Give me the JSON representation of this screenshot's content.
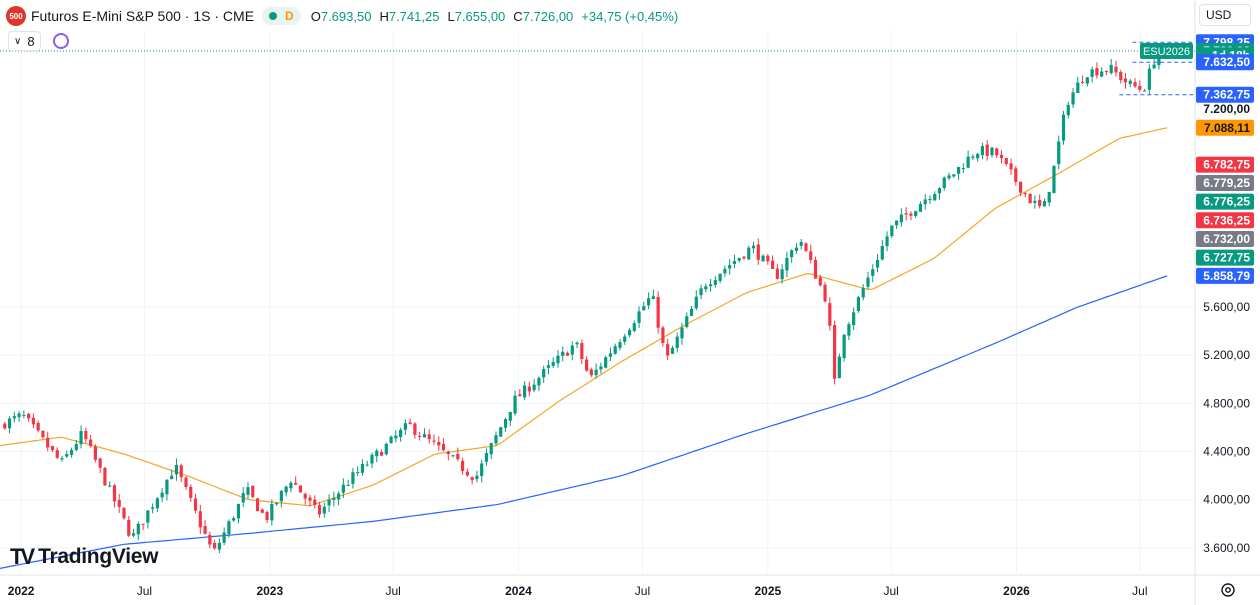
{
  "header": {
    "logo_text": "500",
    "title": "Futuros E-Mini S&P 500 · 1S · CME",
    "d_flag": "D",
    "ohlc": [
      {
        "k": "O",
        "v": "7.693,50"
      },
      {
        "k": "H",
        "v": "7.741,25"
      },
      {
        "k": "L",
        "v": "7.655,00"
      },
      {
        "k": "C",
        "v": "7.726,00"
      }
    ],
    "change": "+34,75 (+0,45%)",
    "indicator_count": "8",
    "currency": "USD"
  },
  "brand": {
    "name": "TradingView",
    "logo": "TV"
  },
  "colors": {
    "up": "#089981",
    "down": "#f23645",
    "ma_short": "#f5a623",
    "ma_long": "#2962ff",
    "axis_text": "#131722",
    "grid": "#f0f3fa"
  },
  "chart_data": {
    "type": "candlestick",
    "title": "Futuros E-Mini S&P 500 · 1S · CME",
    "xlim": [
      "2021-12-01",
      "2026-09-20"
    ],
    "ylim": [
      3400,
      7900
    ],
    "yticks": [
      3600,
      4000,
      4400,
      4800,
      5200,
      5600
    ],
    "ytick_labels": [
      "3.600,00",
      "4.000,00",
      "4.400,00",
      "4.800,00",
      "5.200,00",
      "5.600,00"
    ],
    "xticks": [
      {
        "date": "2022-01-01",
        "label": "2022",
        "bold": true
      },
      {
        "date": "2022-07-01",
        "label": "Jul",
        "bold": false
      },
      {
        "date": "2023-01-01",
        "label": "2023",
        "bold": true
      },
      {
        "date": "2023-07-01",
        "label": "Jul",
        "bold": false
      },
      {
        "date": "2024-01-01",
        "label": "2024",
        "bold": true
      },
      {
        "date": "2024-07-01",
        "label": "Jul",
        "bold": false
      },
      {
        "date": "2025-01-01",
        "label": "2025",
        "bold": true
      },
      {
        "date": "2025-07-01",
        "label": "Jul",
        "bold": false
      },
      {
        "date": "2026-01-01",
        "label": "2026",
        "bold": true
      },
      {
        "date": "2026-07-01",
        "label": "Jul",
        "bold": false
      }
    ],
    "price_anchors": [
      [
        "2021-12-01",
        4620
      ],
      [
        "2022-01-03",
        4700
      ],
      [
        "2022-03-01",
        4300
      ],
      [
        "2022-04-01",
        4550
      ],
      [
        "2022-06-13",
        3680
      ],
      [
        "2022-08-15",
        4280
      ],
      [
        "2022-10-10",
        3550
      ],
      [
        "2022-11-28",
        4080
      ],
      [
        "2022-12-26",
        3840
      ],
      [
        "2023-02-01",
        4170
      ],
      [
        "2023-03-13",
        3880
      ],
      [
        "2023-05-01",
        4180
      ],
      [
        "2023-07-24",
        4620
      ],
      [
        "2023-10-30",
        4180
      ],
      [
        "2023-12-25",
        4820
      ],
      [
        "2024-03-25",
        5300
      ],
      [
        "2024-04-15",
        5000
      ],
      [
        "2024-07-15",
        5700
      ],
      [
        "2024-08-05",
        5150
      ],
      [
        "2024-09-30",
        5790
      ],
      [
        "2024-12-09",
        6100
      ],
      [
        "2025-01-13",
        5850
      ],
      [
        "2025-02-17",
        6170
      ],
      [
        "2025-03-31",
        5620
      ],
      [
        "2025-04-07",
        4900
      ],
      [
        "2025-04-21",
        5380
      ],
      [
        "2025-06-30",
        6250
      ],
      [
        "2025-09-29",
        6700
      ],
      [
        "2025-11-03",
        6900
      ],
      [
        "2025-12-01",
        6880
      ],
      [
        "2026-01-19",
        6500
      ],
      [
        "2026-02-09",
        6400
      ],
      [
        "2026-02-23",
        6700
      ],
      [
        "2026-03-16",
        7300
      ],
      [
        "2026-04-13",
        7550
      ],
      [
        "2026-05-18",
        7580
      ],
      [
        "2026-06-15",
        7450
      ],
      [
        "2026-07-06",
        7400
      ],
      [
        "2026-07-27",
        7730
      ],
      [
        "2026-08-10",
        7726
      ]
    ],
    "last_price_line": 7726,
    "box_high": 7798.25,
    "box_low": 7632.5,
    "range_low_line": 7362.75,
    "ma_short_anchors": [
      [
        "2021-12-01",
        4450
      ],
      [
        "2022-03-01",
        4520
      ],
      [
        "2022-06-01",
        4380
      ],
      [
        "2022-09-01",
        4200
      ],
      [
        "2022-12-01",
        4000
      ],
      [
        "2023-03-01",
        3950
      ],
      [
        "2023-06-01",
        4120
      ],
      [
        "2023-09-01",
        4380
      ],
      [
        "2023-12-01",
        4450
      ],
      [
        "2024-03-01",
        4820
      ],
      [
        "2024-06-01",
        5150
      ],
      [
        "2024-09-01",
        5450
      ],
      [
        "2024-12-01",
        5720
      ],
      [
        "2025-03-01",
        5880
      ],
      [
        "2025-06-01",
        5740
      ],
      [
        "2025-09-01",
        6000
      ],
      [
        "2025-12-01",
        6420
      ],
      [
        "2026-03-01",
        6700
      ],
      [
        "2026-06-01",
        7000
      ],
      [
        "2026-08-10",
        7088.11
      ]
    ],
    "ma_long_anchors": [
      [
        "2021-12-01",
        3430
      ],
      [
        "2022-06-01",
        3630
      ],
      [
        "2022-12-01",
        3720
      ],
      [
        "2023-06-01",
        3820
      ],
      [
        "2023-12-01",
        3960
      ],
      [
        "2024-06-01",
        4200
      ],
      [
        "2024-12-01",
        4550
      ],
      [
        "2025-06-01",
        4870
      ],
      [
        "2025-12-01",
        5300
      ],
      [
        "2026-04-01",
        5600
      ],
      [
        "2026-08-10",
        5858.79
      ]
    ],
    "price_labels": [
      {
        "text": "7.798,25",
        "value": 7798.25,
        "bg": "#2962ff",
        "fg": "#ffffff"
      },
      {
        "text": "7.726,00",
        "value": 7726,
        "bg": "#089981",
        "fg": "#ffffff"
      },
      {
        "text": "1d 18h",
        "value": 7690,
        "bg": "#089981",
        "fg": "#ffffff"
      },
      {
        "text": "7.632,50",
        "value": 7632.5,
        "bg": "#2962ff",
        "fg": "#ffffff"
      },
      {
        "text": "7.362,75",
        "value": 7362.75,
        "bg": "#2962ff",
        "fg": "#ffffff"
      },
      {
        "text": "7.200,00",
        "value": 7245,
        "bg": "none",
        "fg": "#131722"
      },
      {
        "text": "7.088,11",
        "value": 7088.11,
        "bg": "#ff9800",
        "fg": "#131722"
      },
      {
        "text": "6.782,75",
        "value": 6782.75,
        "bg": "#f23645",
        "fg": "#ffffff"
      },
      {
        "text": "6.779,25",
        "value": 6630,
        "bg": "#787b86",
        "fg": "#ffffff"
      },
      {
        "text": "6.776,25",
        "value": 6475,
        "bg": "#089981",
        "fg": "#ffffff"
      },
      {
        "text": "6.736,25",
        "value": 6320,
        "bg": "#f23645",
        "fg": "#ffffff"
      },
      {
        "text": "6.732,00",
        "value": 6165,
        "bg": "#787b86",
        "fg": "#ffffff"
      },
      {
        "text": "6.727,75",
        "value": 6010,
        "bg": "#089981",
        "fg": "#ffffff"
      },
      {
        "text": "5.858,79",
        "value": 5858.79,
        "bg": "#2962ff",
        "fg": "#ffffff"
      }
    ],
    "contract_label": "ESU2026"
  }
}
